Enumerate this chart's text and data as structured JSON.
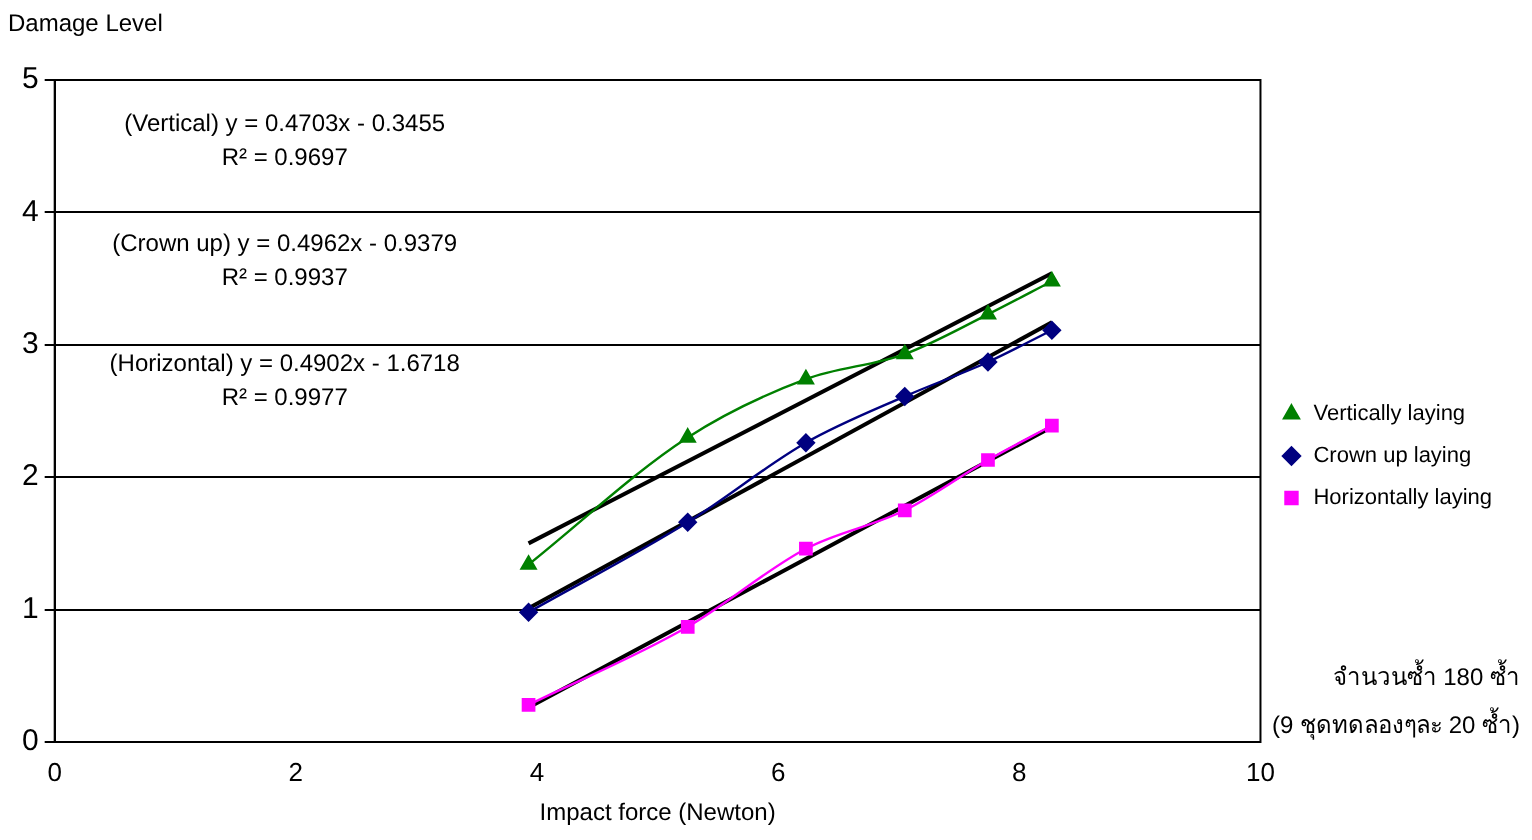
{
  "chart_data": {
    "type": "line",
    "xlabel": "Impact force (Newton)",
    "ylabel": "Damage Level",
    "xlim": [
      0,
      10
    ],
    "xticks": [
      0,
      2,
      4,
      6,
      8,
      10
    ],
    "ylim": [
      0,
      5
    ],
    "yticks": [
      0,
      1,
      2,
      3,
      4,
      5
    ],
    "grid": "y",
    "legend": "right",
    "series": [
      {
        "name": "Vertically laying",
        "color": "#008000",
        "marker": "triangle",
        "x": [
          3.93,
          5.25,
          6.23,
          7.05,
          7.74,
          8.27
        ],
        "values": [
          1.34,
          2.3,
          2.74,
          2.93,
          3.23,
          3.48
        ]
      },
      {
        "name": "Crown up laying",
        "color": "#000080",
        "marker": "diamond",
        "x": [
          3.93,
          5.25,
          6.23,
          7.05,
          7.74,
          8.27
        ],
        "values": [
          0.98,
          1.66,
          2.26,
          2.61,
          2.87,
          3.11
        ]
      },
      {
        "name": "Horizontally laying",
        "color": "#ff00ff",
        "marker": "square",
        "x": [
          3.93,
          5.25,
          6.23,
          7.05,
          7.74,
          8.27
        ],
        "values": [
          0.28,
          0.87,
          1.46,
          1.75,
          2.13,
          2.39
        ]
      },
      {
        "color": "#000000",
        "marker": "none",
        "x": [
          3.93,
          8.27
        ],
        "values": [
          1.5,
          3.54
        ]
      },
      {
        "color": "#000000",
        "marker": "none",
        "x": [
          3.93,
          8.27
        ],
        "values": [
          1.01,
          3.17
        ]
      },
      {
        "color": "#000000",
        "marker": "none",
        "x": [
          3.93,
          8.27
        ],
        "values": [
          0.26,
          2.38
        ]
      }
    ],
    "annotations": [
      "(Vertical) y = 0.4703x - 0.3455",
      "R² = 0.9697",
      "(Crown up) y = 0.4962x - 0.9379",
      "R² = 0.9937",
      "(Horizontal) y = 0.4902x - 1.6718",
      "R² = 0.9977",
      "จำนวนซ้ำ 180 ซ้ำ",
      "(9 ชุดทดลองๆละ 20 ซ้ำ)"
    ]
  }
}
